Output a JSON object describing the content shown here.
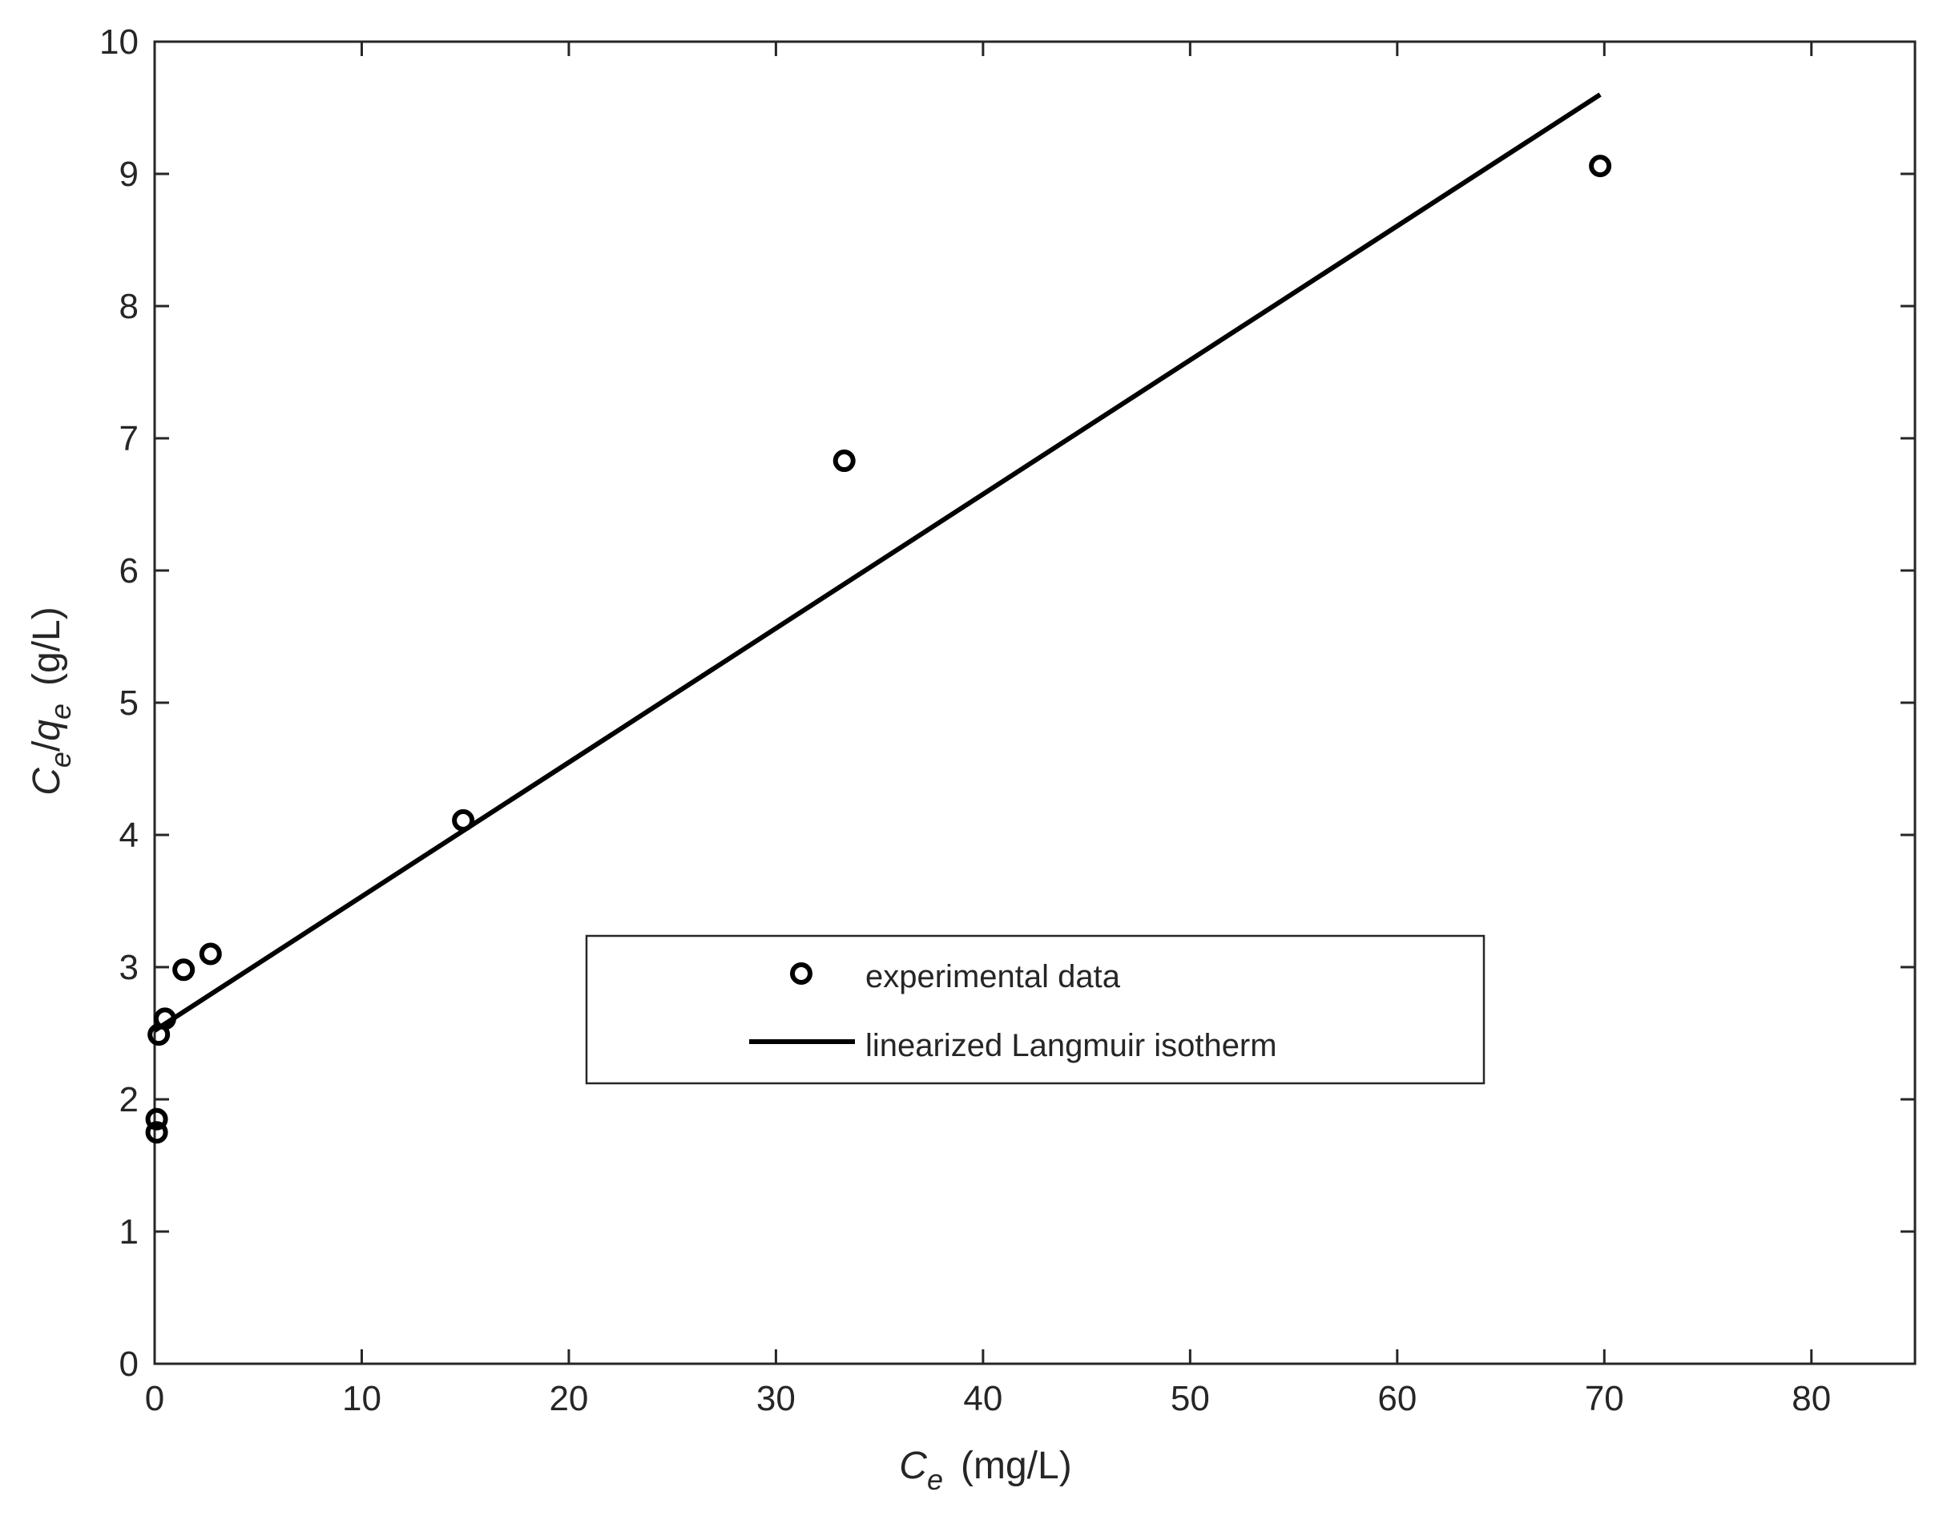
{
  "chart_data": {
    "type": "scatter",
    "xlim": [
      0,
      85
    ],
    "ylim": [
      0,
      10
    ],
    "x_ticks": [
      0,
      10,
      20,
      30,
      40,
      50,
      60,
      70,
      80
    ],
    "y_ticks": [
      0,
      1,
      2,
      3,
      4,
      5,
      6,
      7,
      8,
      9,
      10
    ],
    "xlabel": {
      "main": "C",
      "sub": "e",
      "unit": "(mg/L)"
    },
    "ylabel": {
      "c": "C",
      "c_sub": "e",
      "slash": "/",
      "q": "q",
      "q_sub": "e",
      "unit": "(g/L)"
    },
    "grid": false,
    "legend_position": "center-right",
    "series": [
      {
        "name": "experimental data",
        "kind": "markers",
        "marker": "open-circle",
        "color": "#000000",
        "x": [
          0.1,
          0.1,
          0.2,
          0.5,
          1.4,
          2.7,
          14.9,
          33.3,
          69.8
        ],
        "y": [
          1.75,
          1.85,
          2.49,
          2.61,
          2.98,
          3.1,
          4.11,
          6.83,
          9.06
        ]
      },
      {
        "name": "linearized Langmuir isotherm",
        "kind": "line",
        "color": "#000000",
        "x": [
          0,
          69.8
        ],
        "y": [
          2.52,
          9.6
        ]
      }
    ]
  }
}
